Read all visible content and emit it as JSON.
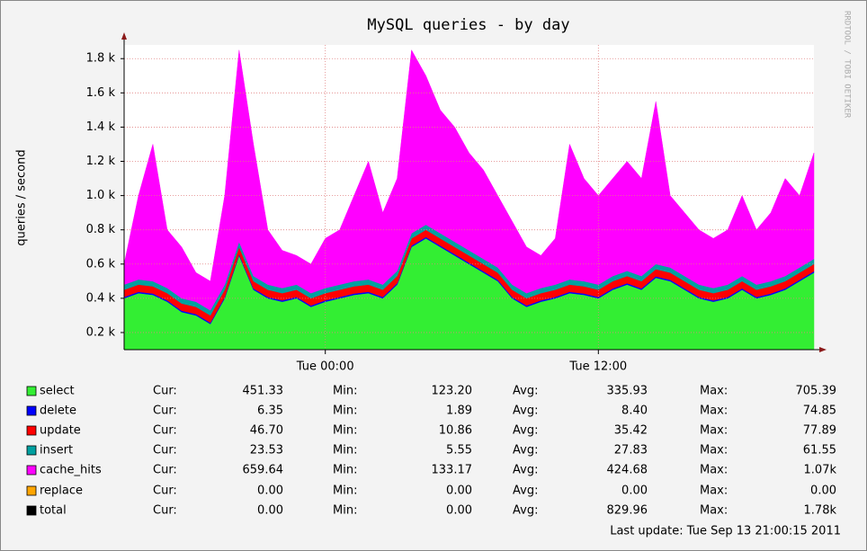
{
  "chart_data": {
    "type": "stacked_area",
    "title": "MySQL queries - by day",
    "side_text": "RRDTOOL / TOBI OETIKER",
    "y_label": "queries / second",
    "footer": "Last update: Tue Sep 13 21:00:15 2011",
    "legend_labels": [
      "Cur:",
      "Min:",
      "Avg:",
      "Max:"
    ],
    "categories": [
      null,
      null,
      null,
      null,
      null,
      null,
      null,
      null,
      null,
      null,
      null,
      null,
      null,
      null,
      "Tue 00:00",
      null,
      null,
      null,
      null,
      null,
      null,
      null,
      null,
      null,
      null,
      null,
      null,
      null,
      null,
      null,
      null,
      null,
      null,
      "Tue 12:00",
      null,
      null,
      null,
      null,
      null,
      null,
      null,
      null,
      null,
      null,
      null,
      null,
      null,
      null,
      null
    ],
    "ylim": [
      100,
      1880
    ],
    "yticks": [
      {
        "value": 200,
        "label": "0.2 k"
      },
      {
        "value": 400,
        "label": "0.4 k"
      },
      {
        "value": 600,
        "label": "0.6 k"
      },
      {
        "value": 800,
        "label": "0.8 k"
      },
      {
        "value": 1000,
        "label": "1.0 k"
      },
      {
        "value": 1200,
        "label": "1.2 k"
      },
      {
        "value": 1400,
        "label": "1.4 k"
      },
      {
        "value": 1600,
        "label": "1.6 k"
      },
      {
        "value": 1800,
        "label": "1.8 k"
      }
    ],
    "grid": true,
    "series": [
      {
        "name": "select",
        "color": "#33ee33",
        "cur": "451.33",
        "min": "123.20",
        "avg": "335.93",
        "max": "705.39",
        "values": [
          300,
          330,
          320,
          280,
          220,
          200,
          150,
          300,
          550,
          350,
          300,
          280,
          300,
          250,
          280,
          300,
          320,
          330,
          300,
          380,
          600,
          650,
          600,
          550,
          500,
          450,
          400,
          300,
          250,
          280,
          300,
          330,
          320,
          300,
          350,
          380,
          350,
          420,
          400,
          350,
          300,
          280,
          300,
          350,
          300,
          320,
          350,
          400,
          450
        ]
      },
      {
        "name": "delete",
        "color": "#0000ff",
        "cur": "6.35",
        "min": "1.89",
        "avg": "8.40",
        "max": "74.85",
        "values": [
          8,
          8,
          8,
          8,
          8,
          8,
          8,
          8,
          8,
          8,
          8,
          8,
          8,
          8,
          8,
          8,
          8,
          8,
          8,
          8,
          8,
          8,
          8,
          8,
          8,
          8,
          8,
          8,
          8,
          8,
          8,
          8,
          8,
          8,
          8,
          8,
          8,
          8,
          8,
          8,
          8,
          8,
          8,
          8,
          8,
          8,
          8,
          8,
          8
        ]
      },
      {
        "name": "update",
        "color": "#ff0000",
        "cur": "46.70",
        "min": "10.86",
        "avg": "35.42",
        "max": "77.89",
        "values": [
          42,
          42,
          42,
          42,
          42,
          42,
          42,
          42,
          42,
          42,
          42,
          42,
          42,
          42,
          42,
          42,
          42,
          42,
          42,
          42,
          42,
          42,
          42,
          42,
          42,
          42,
          42,
          42,
          42,
          42,
          42,
          42,
          42,
          42,
          42,
          42,
          42,
          42,
          42,
          42,
          42,
          42,
          42,
          42,
          42,
          42,
          42,
          42,
          42
        ]
      },
      {
        "name": "insert",
        "color": "#00a0a0",
        "cur": "23.53",
        "min": "5.55",
        "avg": "27.83",
        "max": "61.55",
        "values": [
          30,
          30,
          30,
          30,
          30,
          30,
          30,
          30,
          30,
          30,
          30,
          30,
          30,
          30,
          30,
          30,
          30,
          30,
          30,
          30,
          30,
          30,
          30,
          30,
          30,
          30,
          30,
          30,
          30,
          30,
          30,
          30,
          30,
          30,
          30,
          30,
          30,
          30,
          30,
          30,
          30,
          30,
          30,
          30,
          30,
          30,
          30,
          30,
          30
        ]
      },
      {
        "name": "cache_hits",
        "color": "#ff00ff",
        "cur": "659.64",
        "min": "133.17",
        "avg": "424.68",
        "max": "1.07k",
        "values": [
          120,
          490,
          800,
          340,
          300,
          170,
          170,
          520,
          1120,
          770,
          320,
          220,
          170,
          170,
          290,
          320,
          500,
          690,
          420,
          540,
          1070,
          870,
          720,
          670,
          570,
          520,
          420,
          370,
          270,
          190,
          270,
          790,
          600,
          520,
          570,
          640,
          570,
          950,
          420,
          370,
          320,
          290,
          320,
          470,
          320,
          400,
          570,
          420,
          620
        ]
      },
      {
        "name": "replace",
        "color": "#ffa500",
        "cur": "0.00",
        "min": "0.00",
        "avg": "0.00",
        "max": "0.00"
      },
      {
        "name": "total",
        "color": "#000000",
        "cur": "0.00",
        "min": "0.00",
        "avg": "829.96",
        "max": "1.78k"
      }
    ]
  }
}
